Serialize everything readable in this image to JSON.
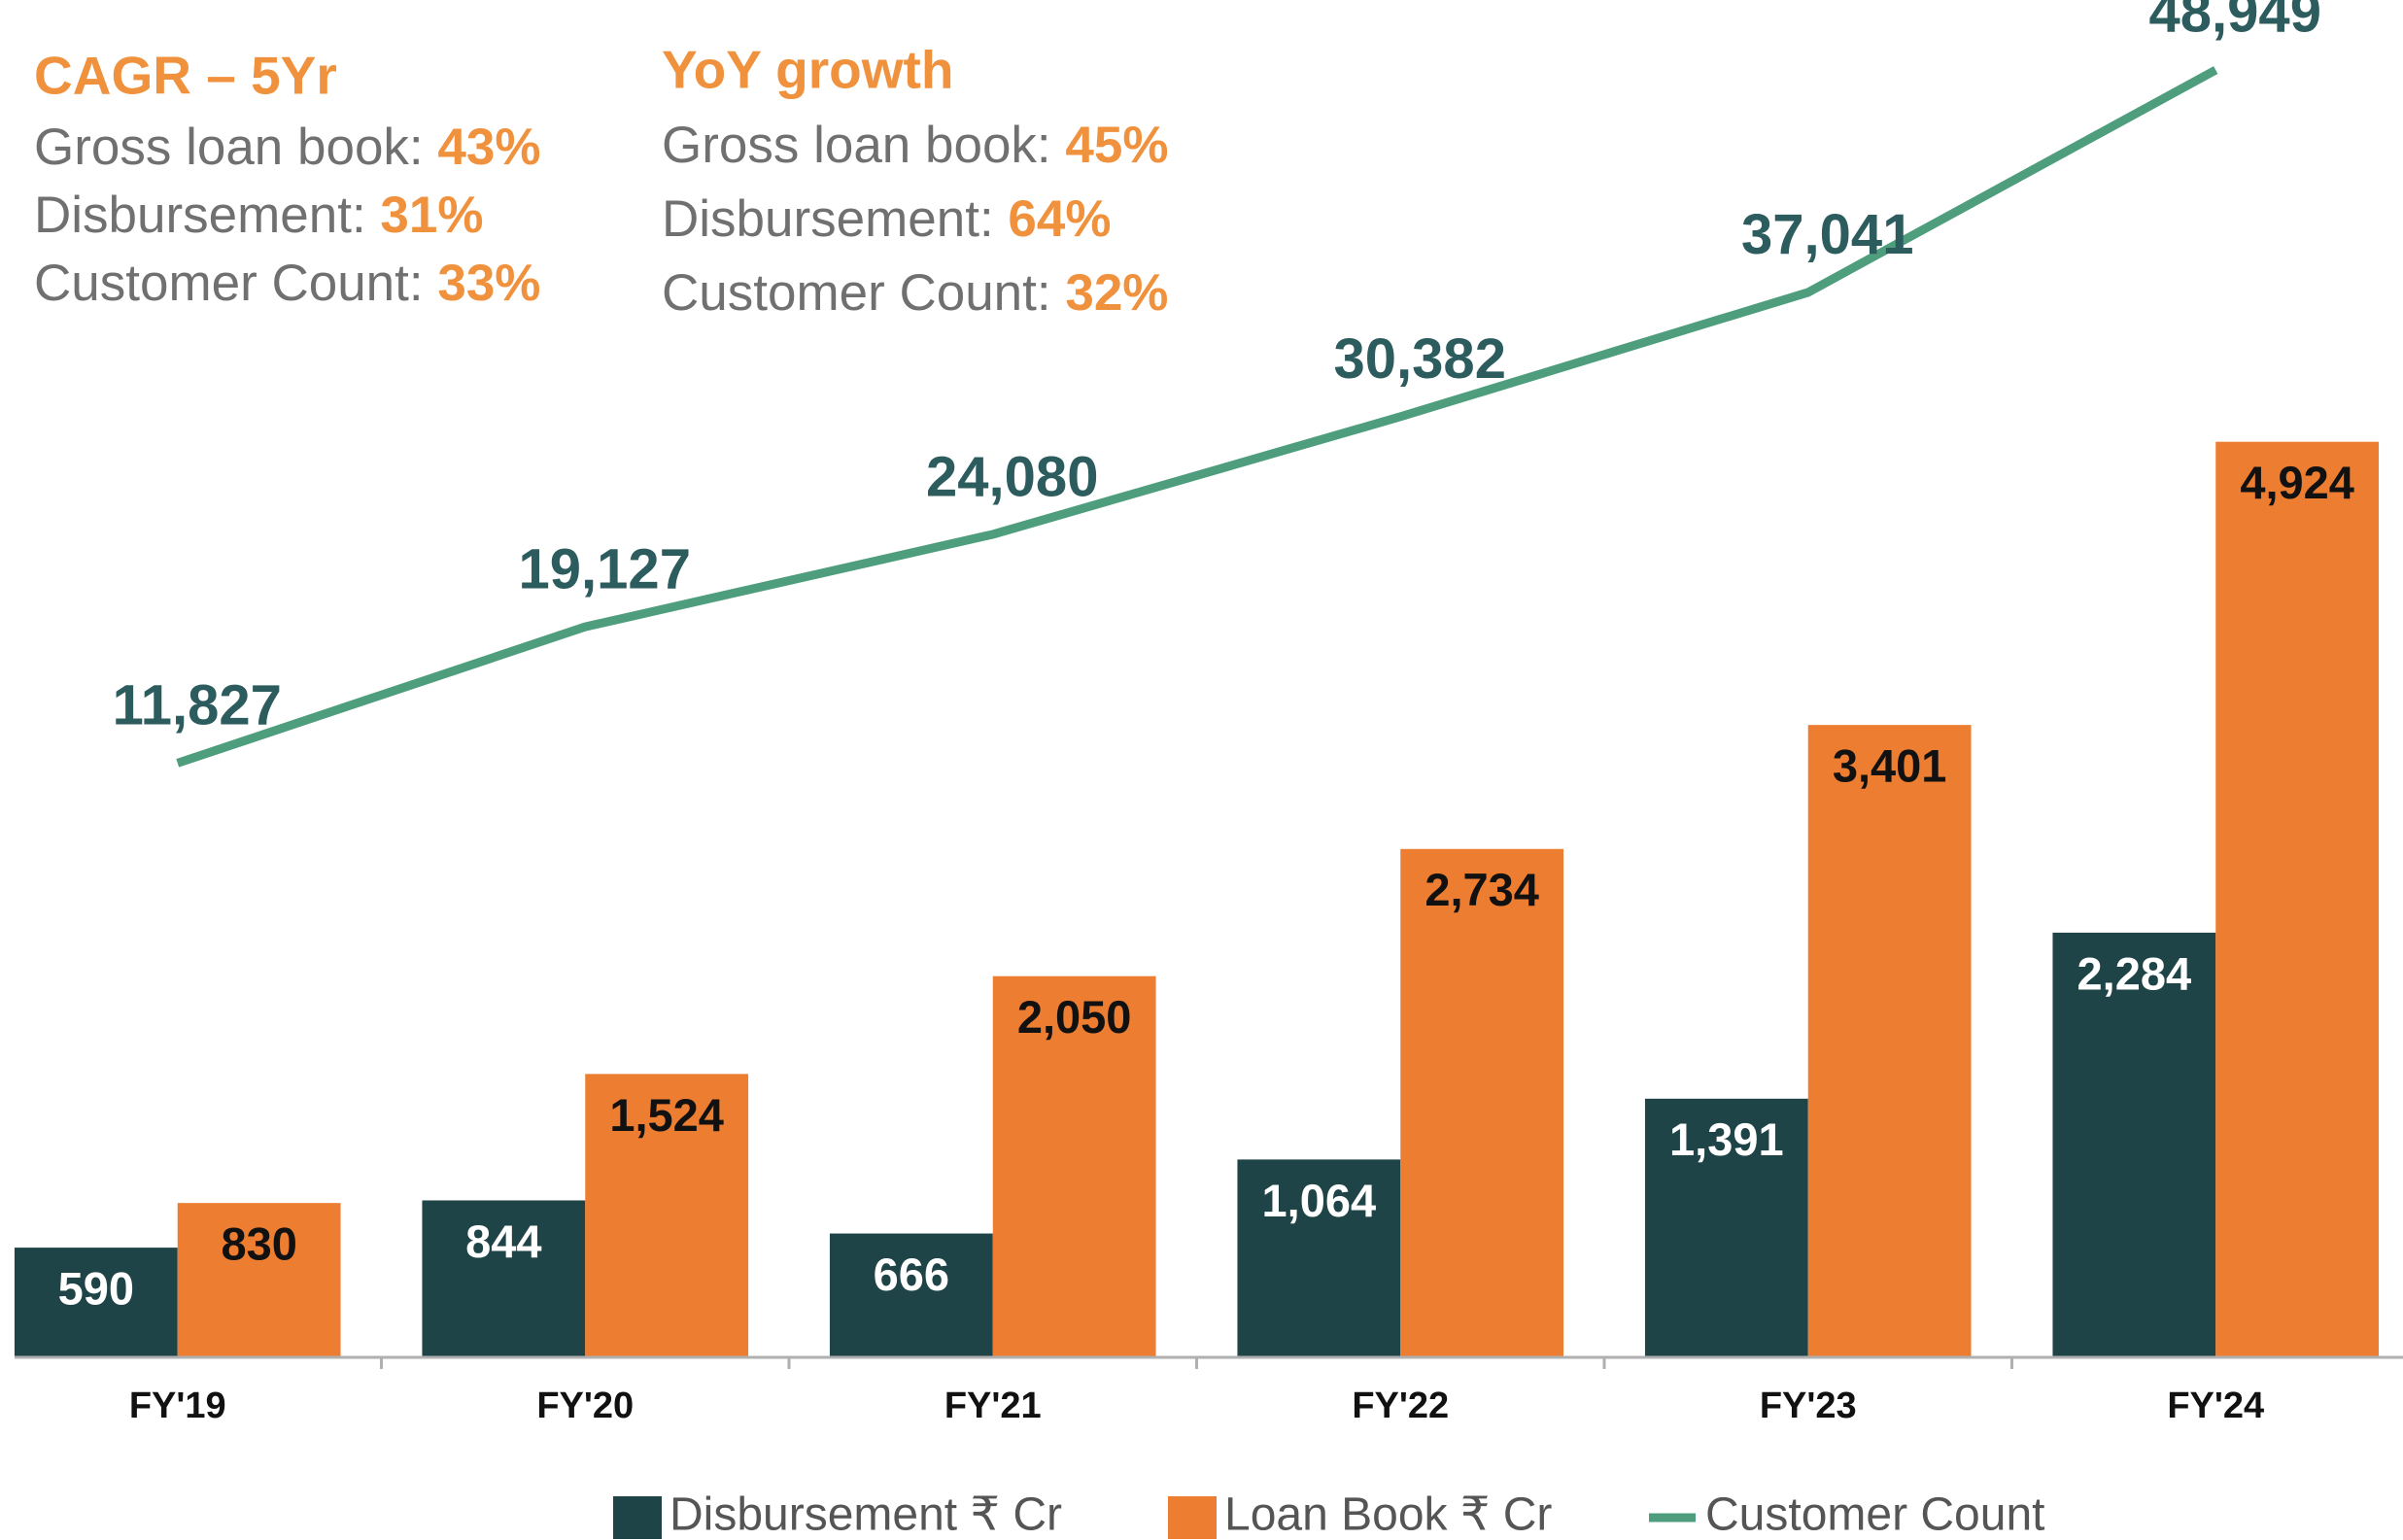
{
  "chart_data": {
    "type": "bar_line",
    "categories": [
      "FY'19",
      "FY'20",
      "FY'21",
      "FY'22",
      "FY'23",
      "FY'24"
    ],
    "series": [
      {
        "name": "Disbursement ₹ Cr",
        "color": "#1f4447",
        "values": [
          590,
          844,
          666,
          1064,
          1391,
          2284
        ],
        "value_labels": [
          "590",
          "844",
          "666",
          "1,064",
          "1,391",
          "2,284"
        ]
      },
      {
        "name": "Loan Book ₹ Cr",
        "color": "#ed7d31",
        "values": [
          830,
          1524,
          2050,
          2734,
          3401,
          4924
        ],
        "value_labels": [
          "830",
          "1,524",
          "2,050",
          "2,734",
          "3,401",
          "4,924"
        ]
      },
      {
        "name": "Customer Count",
        "color": "#4e9e7e",
        "type": "line",
        "axis": "y2",
        "values": [
          11827,
          19127,
          24080,
          30382,
          37041,
          48949
        ],
        "value_labels": [
          "11,827",
          "19,127",
          "24,080",
          "30,382",
          "37,041",
          "48,949"
        ]
      }
    ],
    "ylim": [
      0,
      7300
    ],
    "y2lim": [
      -20000,
      52700
    ],
    "legend": "bottom",
    "annotations": [
      {
        "title": "CAGR – 5Yr",
        "items": [
          {
            "label": "Gross loan book:",
            "value": "43%"
          },
          {
            "label": "Disbursement:",
            "value": "31%"
          },
          {
            "label": "Customer Count:",
            "value": "33%"
          }
        ]
      },
      {
        "title": "YoY growth",
        "items": [
          {
            "label": "Gross loan book:",
            "value": "45%"
          },
          {
            "label": "Disbursement:",
            "value": "64%"
          },
          {
            "label": "Customer Count:",
            "value": "32%"
          }
        ]
      }
    ]
  }
}
